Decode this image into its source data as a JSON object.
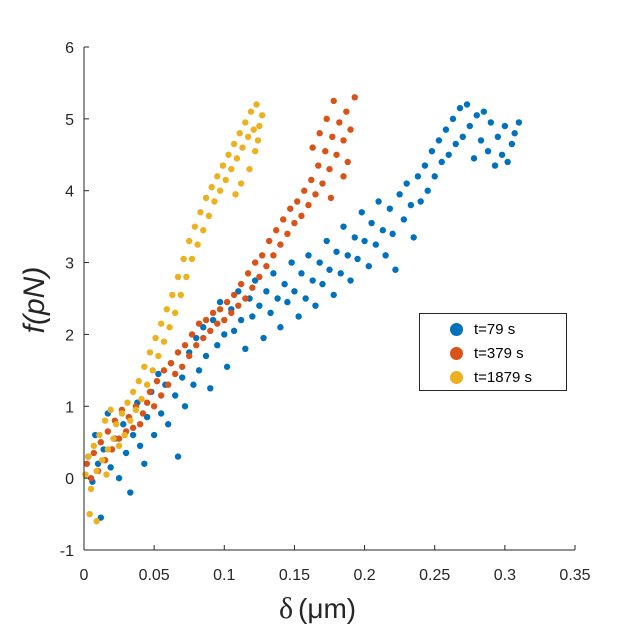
{
  "chart_data": {
    "type": "scatter",
    "title": "",
    "xlabel_symbol": "δ",
    "xlabel_unit": "(μm)",
    "ylabel": "f(pN)",
    "xlim": [
      0,
      0.35
    ],
    "ylim": [
      -1,
      6
    ],
    "xticks": [
      0,
      0.05,
      0.1,
      0.15,
      0.2,
      0.25,
      0.3,
      0.35
    ],
    "xtick_labels": [
      "0",
      "0.05",
      "0.1",
      "0.15",
      "0.2",
      "0.25",
      "0.3",
      "0.35"
    ],
    "yticks": [
      -1,
      0,
      1,
      2,
      3,
      4,
      5,
      6
    ],
    "ytick_labels": [
      "-1",
      "0",
      "1",
      "2",
      "3",
      "4",
      "5",
      "6"
    ],
    "legend_position": "right-middle",
    "series": [
      {
        "name": "t=79 s",
        "color": "#0072BD",
        "points": [
          [
            0.003,
            0.3
          ],
          [
            0.006,
            -0.05
          ],
          [
            0.008,
            0.6
          ],
          [
            0.01,
            0.2
          ],
          [
            0.012,
            -0.55
          ],
          [
            0.014,
            0.4
          ],
          [
            0.017,
            0.9
          ],
          [
            0.019,
            0.15
          ],
          [
            0.022,
            0.55
          ],
          [
            0.025,
            0.0
          ],
          [
            0.028,
            0.75
          ],
          [
            0.03,
            0.35
          ],
          [
            0.033,
            -0.2
          ],
          [
            0.035,
            0.6
          ],
          [
            0.038,
            1.05
          ],
          [
            0.04,
            0.45
          ],
          [
            0.043,
            0.2
          ],
          [
            0.045,
            0.85
          ],
          [
            0.048,
            1.2
          ],
          [
            0.05,
            0.6
          ],
          [
            0.053,
            1.45
          ],
          [
            0.055,
            0.9
          ],
          [
            0.058,
            1.3
          ],
          [
            0.06,
            0.75
          ],
          [
            0.062,
            1.6
          ],
          [
            0.065,
            1.15
          ],
          [
            0.067,
            0.3
          ],
          [
            0.07,
            1.4
          ],
          [
            0.072,
            1.0
          ],
          [
            0.075,
            1.75
          ],
          [
            0.078,
            1.3
          ],
          [
            0.08,
            1.95
          ],
          [
            0.082,
            1.5
          ],
          [
            0.085,
            2.1
          ],
          [
            0.087,
            1.7
          ],
          [
            0.09,
            1.25
          ],
          [
            0.092,
            2.2
          ],
          [
            0.095,
            1.85
          ],
          [
            0.097,
            2.45
          ],
          [
            0.1,
            2.0
          ],
          [
            0.102,
            1.55
          ],
          [
            0.105,
            2.35
          ],
          [
            0.107,
            2.05
          ],
          [
            0.11,
            2.6
          ],
          [
            0.112,
            2.2
          ],
          [
            0.115,
            1.8
          ],
          [
            0.118,
            2.5
          ],
          [
            0.12,
            2.25
          ],
          [
            0.122,
            2.75
          ],
          [
            0.125,
            2.4
          ],
          [
            0.128,
            1.95
          ],
          [
            0.13,
            2.6
          ],
          [
            0.133,
            2.3
          ],
          [
            0.135,
            2.85
          ],
          [
            0.138,
            2.5
          ],
          [
            0.14,
            2.1
          ],
          [
            0.143,
            2.7
          ],
          [
            0.145,
            2.45
          ],
          [
            0.148,
            3.0
          ],
          [
            0.15,
            2.6
          ],
          [
            0.153,
            2.25
          ],
          [
            0.155,
            2.85
          ],
          [
            0.158,
            2.5
          ],
          [
            0.16,
            3.1
          ],
          [
            0.163,
            2.75
          ],
          [
            0.165,
            2.4
          ],
          [
            0.168,
            3.0
          ],
          [
            0.17,
            2.7
          ],
          [
            0.173,
            3.3
          ],
          [
            0.175,
            2.9
          ],
          [
            0.178,
            2.55
          ],
          [
            0.18,
            3.15
          ],
          [
            0.183,
            2.85
          ],
          [
            0.185,
            3.5
          ],
          [
            0.188,
            3.1
          ],
          [
            0.19,
            2.75
          ],
          [
            0.193,
            3.35
          ],
          [
            0.195,
            3.05
          ],
          [
            0.198,
            3.7
          ],
          [
            0.2,
            3.3
          ],
          [
            0.203,
            2.95
          ],
          [
            0.205,
            3.55
          ],
          [
            0.208,
            3.25
          ],
          [
            0.21,
            3.85
          ],
          [
            0.213,
            3.45
          ],
          [
            0.215,
            3.1
          ],
          [
            0.218,
            3.75
          ],
          [
            0.22,
            3.4
          ],
          [
            0.222,
            2.9
          ],
          [
            0.225,
            3.95
          ],
          [
            0.228,
            3.6
          ],
          [
            0.23,
            4.1
          ],
          [
            0.233,
            3.8
          ],
          [
            0.235,
            3.35
          ],
          [
            0.238,
            4.2
          ],
          [
            0.24,
            3.85
          ],
          [
            0.243,
            4.35
          ],
          [
            0.245,
            4.0
          ],
          [
            0.248,
            4.55
          ],
          [
            0.25,
            4.2
          ],
          [
            0.253,
            4.7
          ],
          [
            0.255,
            4.4
          ],
          [
            0.258,
            4.85
          ],
          [
            0.26,
            4.5
          ],
          [
            0.263,
            5.0
          ],
          [
            0.265,
            4.65
          ],
          [
            0.268,
            5.15
          ],
          [
            0.27,
            4.75
          ],
          [
            0.273,
            5.2
          ],
          [
            0.275,
            4.9
          ],
          [
            0.278,
            4.45
          ],
          [
            0.28,
            5.05
          ],
          [
            0.283,
            4.7
          ],
          [
            0.285,
            5.1
          ],
          [
            0.288,
            4.55
          ],
          [
            0.29,
            4.95
          ],
          [
            0.293,
            4.35
          ],
          [
            0.295,
            4.75
          ],
          [
            0.298,
            4.5
          ],
          [
            0.3,
            4.9
          ],
          [
            0.302,
            4.4
          ],
          [
            0.305,
            4.65
          ],
          [
            0.307,
            4.8
          ],
          [
            0.31,
            4.95
          ]
        ]
      },
      {
        "name": "t=379 s",
        "color": "#D95319",
        "points": [
          [
            0.002,
            0.2
          ],
          [
            0.005,
            0.0
          ],
          [
            0.007,
            0.35
          ],
          [
            0.01,
            0.1
          ],
          [
            0.012,
            0.5
          ],
          [
            0.015,
            0.25
          ],
          [
            0.017,
            0.65
          ],
          [
            0.02,
            0.4
          ],
          [
            0.022,
            0.8
          ],
          [
            0.025,
            0.55
          ],
          [
            0.027,
            0.95
          ],
          [
            0.03,
            0.65
          ],
          [
            0.032,
            0.85
          ],
          [
            0.035,
            0.7
          ],
          [
            0.037,
            1.0
          ],
          [
            0.04,
            0.75
          ],
          [
            0.042,
            0.9
          ],
          [
            0.045,
            1.05
          ],
          [
            0.047,
            1.2
          ],
          [
            0.05,
            1.0
          ],
          [
            0.052,
            1.35
          ],
          [
            0.055,
            1.15
          ],
          [
            0.057,
            1.5
          ],
          [
            0.06,
            1.3
          ],
          [
            0.062,
            1.6
          ],
          [
            0.065,
            1.45
          ],
          [
            0.067,
            1.75
          ],
          [
            0.07,
            1.55
          ],
          [
            0.072,
            1.85
          ],
          [
            0.075,
            1.7
          ],
          [
            0.077,
            2.0
          ],
          [
            0.08,
            1.85
          ],
          [
            0.082,
            2.15
          ],
          [
            0.085,
            1.95
          ],
          [
            0.087,
            2.2
          ],
          [
            0.09,
            2.05
          ],
          [
            0.092,
            2.3
          ],
          [
            0.095,
            2.15
          ],
          [
            0.097,
            2.35
          ],
          [
            0.1,
            2.2
          ],
          [
            0.102,
            2.45
          ],
          [
            0.105,
            2.3
          ],
          [
            0.107,
            2.55
          ],
          [
            0.11,
            2.4
          ],
          [
            0.112,
            2.7
          ],
          [
            0.115,
            2.5
          ],
          [
            0.117,
            2.85
          ],
          [
            0.12,
            2.65
          ],
          [
            0.122,
            3.0
          ],
          [
            0.125,
            2.8
          ],
          [
            0.127,
            3.1
          ],
          [
            0.13,
            2.95
          ],
          [
            0.132,
            3.3
          ],
          [
            0.135,
            3.1
          ],
          [
            0.137,
            3.45
          ],
          [
            0.14,
            3.25
          ],
          [
            0.142,
            3.6
          ],
          [
            0.145,
            3.4
          ],
          [
            0.147,
            3.75
          ],
          [
            0.15,
            3.55
          ],
          [
            0.152,
            3.85
          ],
          [
            0.155,
            3.65
          ],
          [
            0.157,
            4.0
          ],
          [
            0.16,
            3.8
          ],
          [
            0.162,
            4.15
          ],
          [
            0.165,
            3.95
          ],
          [
            0.167,
            4.35
          ],
          [
            0.17,
            4.1
          ],
          [
            0.172,
            4.55
          ],
          [
            0.175,
            4.3
          ],
          [
            0.177,
            4.75
          ],
          [
            0.18,
            4.5
          ],
          [
            0.182,
            4.95
          ],
          [
            0.185,
            4.7
          ],
          [
            0.187,
            5.1
          ],
          [
            0.19,
            4.85
          ],
          [
            0.193,
            5.3
          ],
          [
            0.173,
            5.0
          ],
          [
            0.178,
            5.25
          ],
          [
            0.168,
            4.8
          ],
          [
            0.185,
            4.2
          ],
          [
            0.163,
            4.6
          ],
          [
            0.188,
            4.4
          ],
          [
            0.176,
            3.9
          ]
        ]
      },
      {
        "name": "t=1879 s",
        "color": "#EDB120",
        "points": [
          [
            0.001,
            0.05
          ],
          [
            0.003,
            0.3
          ],
          [
            0.005,
            -0.15
          ],
          [
            0.007,
            0.45
          ],
          [
            0.009,
            0.1
          ],
          [
            0.011,
            0.6
          ],
          [
            0.013,
            0.25
          ],
          [
            0.015,
            0.8
          ],
          [
            0.017,
            0.4
          ],
          [
            0.019,
            0.95
          ],
          [
            0.021,
            0.55
          ],
          [
            0.023,
            0.75
          ],
          [
            0.025,
            0.45
          ],
          [
            0.027,
            0.9
          ],
          [
            0.029,
            0.6
          ],
          [
            0.031,
            1.05
          ],
          [
            0.033,
            0.8
          ],
          [
            0.035,
            1.2
          ],
          [
            0.037,
            0.95
          ],
          [
            0.039,
            1.35
          ],
          [
            0.041,
            1.1
          ],
          [
            0.043,
            1.55
          ],
          [
            0.045,
            1.3
          ],
          [
            0.047,
            1.75
          ],
          [
            0.049,
            1.5
          ],
          [
            0.051,
            1.95
          ],
          [
            0.053,
            1.7
          ],
          [
            0.055,
            2.15
          ],
          [
            0.057,
            1.9
          ],
          [
            0.059,
            2.35
          ],
          [
            0.061,
            2.1
          ],
          [
            0.063,
            2.55
          ],
          [
            0.065,
            2.3
          ],
          [
            0.067,
            2.8
          ],
          [
            0.069,
            2.55
          ],
          [
            0.071,
            3.05
          ],
          [
            0.073,
            2.8
          ],
          [
            0.075,
            3.3
          ],
          [
            0.077,
            3.05
          ],
          [
            0.079,
            3.5
          ],
          [
            0.081,
            3.25
          ],
          [
            0.083,
            3.7
          ],
          [
            0.085,
            3.45
          ],
          [
            0.087,
            3.9
          ],
          [
            0.089,
            3.65
          ],
          [
            0.091,
            4.05
          ],
          [
            0.093,
            3.85
          ],
          [
            0.095,
            4.2
          ],
          [
            0.097,
            4.0
          ],
          [
            0.099,
            4.35
          ],
          [
            0.101,
            4.15
          ],
          [
            0.103,
            4.5
          ],
          [
            0.105,
            4.3
          ],
          [
            0.107,
            4.65
          ],
          [
            0.109,
            4.45
          ],
          [
            0.111,
            4.8
          ],
          [
            0.113,
            4.6
          ],
          [
            0.115,
            4.95
          ],
          [
            0.117,
            4.75
          ],
          [
            0.119,
            5.1
          ],
          [
            0.121,
            4.85
          ],
          [
            0.123,
            5.2
          ],
          [
            0.125,
            4.9
          ],
          [
            0.127,
            5.05
          ],
          [
            0.122,
            4.55
          ],
          [
            0.118,
            4.3
          ],
          [
            0.124,
            4.7
          ],
          [
            0.112,
            4.1
          ],
          [
            0.108,
            3.95
          ],
          [
            0.004,
            -0.5
          ],
          [
            0.009,
            -0.6
          ],
          [
            0.016,
            0.05
          ]
        ]
      }
    ]
  }
}
